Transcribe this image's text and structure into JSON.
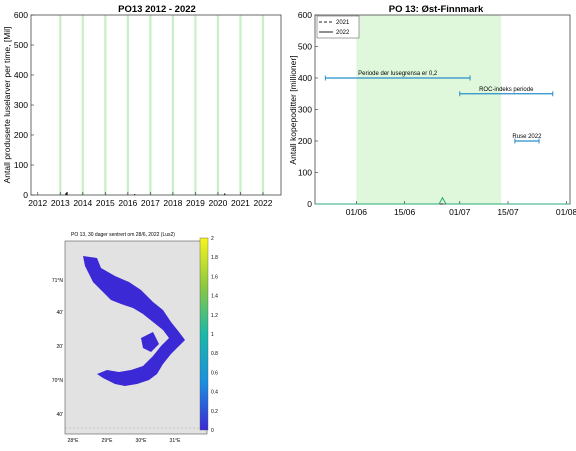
{
  "chart_data": [
    {
      "type": "bar",
      "title": "PO13 2012 - 2022",
      "xlabel": "",
      "ylabel": "Antall produserte luselarver per time, [Mil]",
      "ylim": [
        0,
        600
      ],
      "yticks": [
        "0",
        "100",
        "200",
        "300",
        "400",
        "500",
        "600"
      ],
      "xticks": [
        "2012",
        "2013",
        "2014",
        "2015",
        "2016",
        "2017",
        "2018",
        "2019",
        "2020",
        "2021",
        "2022"
      ],
      "grid": true,
      "green_periods_year_fraction": [
        [
          2012.95,
          2013.05
        ],
        [
          2013.95,
          2014.05
        ],
        [
          2014.95,
          2015.05
        ],
        [
          2015.95,
          2016.05
        ],
        [
          2016.95,
          2017.05
        ],
        [
          2017.95,
          2018.05
        ],
        [
          2018.95,
          2019.05
        ],
        [
          2019.95,
          2020.05
        ],
        [
          2020.95,
          2021.05
        ],
        [
          2021.95,
          2022.05
        ]
      ],
      "series": [
        {
          "values": [
            {
              "x": 2013.25,
              "y": 6
            },
            {
              "x": 2013.3,
              "y": 10
            },
            {
              "x": 2016.3,
              "y": 3
            },
            {
              "x": 2020.3,
              "y": 5
            }
          ]
        }
      ]
    },
    {
      "type": "line",
      "title": "PO 13: Øst-Finnmark",
      "xlabel": "",
      "ylabel": "Antall kopepoditter [millioner]",
      "ylim": [
        0,
        600
      ],
      "yticks": [
        "0",
        "100",
        "200",
        "300",
        "400",
        "500",
        "600"
      ],
      "xticks": [
        "01/06",
        "15/06",
        "01/07",
        "15/07",
        "01/08"
      ],
      "xrange_days": [
        "2022-05-20",
        "2022-08-02"
      ],
      "legend_position": "top-left",
      "series": [
        {
          "name": "2021",
          "style": "dashed",
          "values": [
            {
              "x": "2022-05-20",
              "y": 0
            },
            {
              "x": "2022-08-02",
              "y": 0
            }
          ]
        },
        {
          "name": "2022",
          "style": "solid",
          "values": [
            {
              "x": "2022-05-20",
              "y": 0
            },
            {
              "x": "2022-06-25",
              "y": 0
            },
            {
              "x": "2022-06-26",
              "y": 20
            },
            {
              "x": "2022-06-27",
              "y": 0
            },
            {
              "x": "2022-08-02",
              "y": 0
            }
          ]
        }
      ],
      "shaded_period": {
        "from": "2022-06-01",
        "to": "2022-07-13",
        "color": "#dff8dc"
      },
      "annotations": [
        {
          "label": "Periode der lusegrensa er 0,2",
          "from": "2022-05-23",
          "to": "2022-07-04",
          "y": 400
        },
        {
          "label": "ROC-indeks periode",
          "from": "2022-07-01",
          "to": "2022-07-28",
          "y": 350
        },
        {
          "label": "Ruse 2022",
          "from": "2022-07-17",
          "to": "2022-07-24",
          "y": 200
        }
      ]
    },
    {
      "type": "heatmap",
      "title": "PO 13, 30 dager sentrert om 28/6, 2022 (Lus2)",
      "colorbar_range": [
        0,
        2
      ],
      "colorbar_ticks": [
        "0",
        "0.2",
        "0.4",
        "0.6",
        "0.8",
        "1",
        "1.2",
        "1.4",
        "1.6",
        "1.8",
        "2"
      ],
      "lat_ticks": [
        "71°N",
        "40'",
        "20'",
        "70°N",
        "40'"
      ],
      "lon_ticks": [
        "28°E",
        "29°E",
        "30°E",
        "31°E"
      ],
      "colors": {
        "land": "#e2e2e2",
        "water": "#3b29d6",
        "colormap": [
          "#3b29d6",
          "#1c8fe0",
          "#1ab8a8",
          "#8dc83e",
          "#f8f51c"
        ]
      }
    }
  ]
}
